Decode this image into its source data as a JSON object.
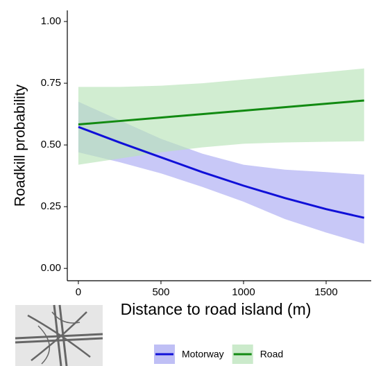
{
  "chart_data": {
    "type": "line",
    "xlabel": "Distance to road island (m)",
    "ylabel": "Roadkill probability",
    "x": [
      0,
      250,
      500,
      750,
      1000,
      1250,
      1500,
      1730
    ],
    "series": [
      {
        "name": "Motorway",
        "color": "#1010d8",
        "band_color": "#aaaaf2",
        "values": [
          0.573,
          0.51,
          0.45,
          0.39,
          0.335,
          0.285,
          0.24,
          0.205
        ],
        "lower": [
          0.47,
          0.43,
          0.385,
          0.33,
          0.27,
          0.2,
          0.145,
          0.1
        ],
        "upper": [
          0.675,
          0.6,
          0.525,
          0.465,
          0.42,
          0.4,
          0.39,
          0.38
        ]
      },
      {
        "name": "Road",
        "color": "#128a12",
        "band_color": "#b9e3b9",
        "values": [
          0.583,
          0.597,
          0.611,
          0.625,
          0.639,
          0.653,
          0.667,
          0.68
        ],
        "lower": [
          0.42,
          0.445,
          0.47,
          0.49,
          0.505,
          0.51,
          0.513,
          0.515
        ],
        "upper": [
          0.735,
          0.735,
          0.74,
          0.75,
          0.765,
          0.78,
          0.795,
          0.81
        ]
      }
    ],
    "xlim": [
      -67,
      1773
    ],
    "ylim": [
      -0.05,
      1.045
    ],
    "xticks": [
      0,
      500,
      1000,
      1500
    ],
    "yticks": [
      {
        "value": 0,
        "label": "0.00"
      },
      {
        "value": 0.25,
        "label": "0.25"
      },
      {
        "value": 0.5,
        "label": "0.50"
      },
      {
        "value": 0.75,
        "label": "0.75"
      },
      {
        "value": 1,
        "label": "1.00"
      }
    ],
    "legend": "bottom"
  }
}
